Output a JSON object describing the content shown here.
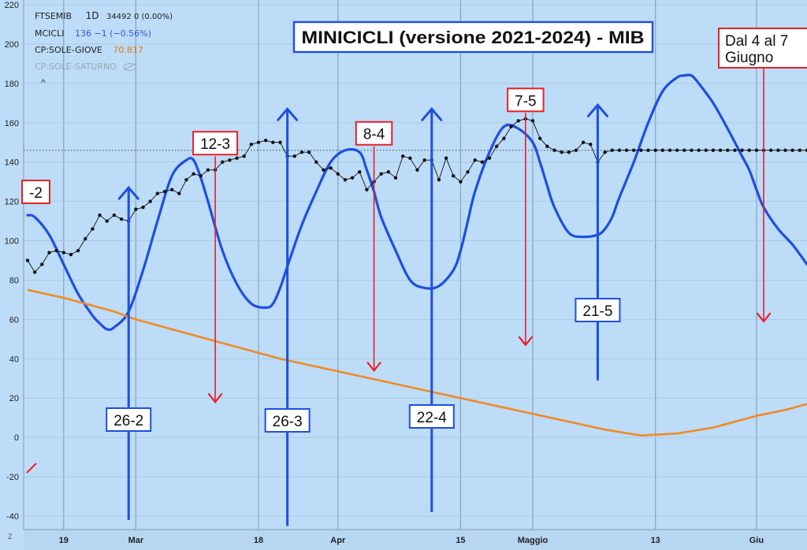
{
  "legend": {
    "symbol": "FTSEMIB",
    "interval": "1D",
    "quote": "34492 0 (0.00%)",
    "mcicli_name": "MCICLI",
    "mcicli_value": "136 −1 (−0.56%)",
    "sole_giove_name": "CP:SOLE-GIOVE",
    "sole_giove_value": "70.817",
    "sole_saturno_name": "CP:SOLE-SATURNO",
    "caret": "^",
    "zoom_button": "Z"
  },
  "colors": {
    "background": "#bcdcf7",
    "cycle": "#1f4ee0",
    "price": "#111111",
    "sole_giove": "#f08a24",
    "red_arrow": "#e8202a",
    "blue_arrow": "#1f4ee0",
    "grid": "#8aa7c2",
    "legend_blue": "#2f5bd6",
    "legend_orange": "#e07c10"
  },
  "chart_data": {
    "type": "line",
    "title": "MINICICLI (versione 2021-2024) - MIB",
    "xlabel": "",
    "ylabel": "",
    "ylim": [
      -45,
      220
    ],
    "yticks": [
      -40,
      -20,
      0,
      20,
      40,
      60,
      80,
      100,
      120,
      140,
      160,
      180,
      200,
      220
    ],
    "x_tick_labels": [
      "19",
      "Mar",
      "18",
      "Apr",
      "15",
      "Maggio",
      "13",
      "Giu"
    ],
    "x_tick_days": [
      0,
      10,
      27,
      38,
      55,
      65,
      82,
      96
    ],
    "x_range_days": [
      -5,
      103
    ],
    "reference_level": 146,
    "series": [
      {
        "name": "MCICLI",
        "style": "smooth",
        "x": [
          -5,
          -4,
          -2,
          0,
          2,
          4,
          5,
          6,
          7,
          9,
          11,
          13,
          15,
          17,
          18,
          19,
          20,
          22,
          24,
          26,
          28,
          29,
          30,
          31,
          33,
          35,
          37,
          39,
          41,
          42,
          43,
          44,
          46,
          48,
          50,
          52,
          54,
          55,
          56,
          57,
          59,
          61,
          63,
          65,
          66,
          67,
          68,
          70,
          72,
          74,
          75,
          76,
          77,
          79,
          81,
          83,
          85,
          86,
          87,
          88,
          90,
          92,
          94,
          95,
          96,
          97,
          99,
          101,
          103
        ],
        "values": [
          113,
          112,
          103,
          88,
          73,
          62,
          58,
          55,
          56,
          64,
          85,
          110,
          133,
          141,
          141,
          132,
          120,
          95,
          78,
          68,
          66,
          68,
          76,
          87,
          108,
          125,
          140,
          146,
          145,
          136,
          125,
          112,
          95,
          80,
          76,
          77,
          85,
          95,
          110,
          125,
          145,
          158,
          157,
          150,
          140,
          128,
          117,
          104,
          102,
          103,
          106,
          112,
          122,
          140,
          160,
          176,
          183,
          184,
          184,
          180,
          170,
          157,
          143,
          136,
          126,
          117,
          106,
          98,
          88
        ]
      },
      {
        "name": "FTSEMIB",
        "style": "dotted-line",
        "x": [
          -5,
          -4,
          -3,
          -2,
          -1,
          0,
          1,
          2,
          3,
          4,
          5,
          6,
          7,
          8,
          9,
          10,
          11,
          12,
          13,
          14,
          15,
          16,
          17,
          18,
          19,
          20,
          21,
          22,
          23,
          24,
          25,
          26,
          27,
          28,
          29,
          30,
          31,
          32,
          33,
          34,
          35,
          36,
          37,
          38,
          39,
          40,
          41,
          42,
          43,
          44,
          45,
          46,
          47,
          48,
          49,
          50,
          51,
          52,
          53,
          54,
          55,
          56,
          57,
          58,
          59,
          60,
          61,
          62,
          63,
          64,
          65,
          66,
          67,
          68,
          69,
          70,
          71,
          72,
          73,
          74,
          75,
          76,
          77,
          78,
          79,
          80,
          81,
          82,
          83,
          84,
          85,
          86,
          87,
          88,
          89,
          90,
          91,
          92,
          93,
          94,
          95,
          96,
          97,
          98,
          99,
          100,
          101,
          102,
          103
        ],
        "values": [
          90,
          84,
          88,
          94,
          95,
          94,
          93,
          95,
          101,
          106,
          113,
          110,
          113,
          111,
          110,
          116,
          117,
          120,
          124,
          125,
          126,
          124,
          131,
          134,
          133,
          136,
          136,
          140,
          141,
          142,
          143,
          149,
          150,
          151,
          150,
          150,
          143,
          143,
          145,
          145,
          140,
          136,
          137,
          134,
          131,
          132,
          135,
          126,
          130,
          134,
          135,
          132,
          143,
          142,
          136,
          141,
          141,
          131,
          142,
          133,
          130,
          135,
          141,
          140,
          142,
          148,
          152,
          158,
          161,
          162,
          161,
          152,
          148,
          146,
          145,
          145,
          146,
          150,
          149,
          140,
          145,
          146,
          146,
          146,
          146,
          146,
          146,
          146,
          146,
          146,
          146,
          146,
          146,
          146,
          146,
          146,
          146,
          146,
          146,
          146,
          146,
          146,
          146,
          146,
          146,
          146,
          146,
          146,
          146
        ]
      },
      {
        "name": "CP:SOLE-GIOVE",
        "style": "line",
        "x": [
          -5,
          0,
          3,
          7,
          10,
          13,
          17,
          20,
          25,
          30,
          35,
          40,
          45,
          50,
          55,
          60,
          65,
          70,
          75,
          80,
          85,
          90,
          93,
          96,
          100,
          103
        ],
        "values": [
          75,
          71,
          68,
          64,
          60,
          57,
          53,
          50,
          45,
          40,
          36,
          32,
          28,
          24,
          20,
          16,
          12,
          8,
          4,
          1,
          2,
          5,
          8,
          11,
          14,
          17
        ]
      }
    ],
    "annotations": [
      {
        "label": "-2",
        "kind": "red-box",
        "x": -5,
        "y": 125
      },
      {
        "label": "12-3",
        "kind": "red-box",
        "arrow": "down",
        "x": 21,
        "y_from": 143,
        "y_to": 18
      },
      {
        "label": "8-4",
        "kind": "red-box",
        "arrow": "down",
        "x": 43,
        "y_from": 148,
        "y_to": 34
      },
      {
        "label": "7-5",
        "kind": "red-box",
        "arrow": "down",
        "x": 64,
        "y_from": 165,
        "y_to": 47
      },
      {
        "label": "Dal 4 al 7\nGiugno",
        "kind": "red-box",
        "arrow": "down",
        "x": 97,
        "y_from": 188,
        "y_to": 59
      },
      {
        "label": "26-2",
        "kind": "blue-box",
        "arrow": "up",
        "x": 9,
        "y_from": -42,
        "y_to": 127
      },
      {
        "label": "26-3",
        "kind": "blue-box",
        "arrow": "up",
        "x": 31,
        "y_from": -45,
        "y_to": 167
      },
      {
        "label": "22-4",
        "kind": "blue-box",
        "arrow": "up",
        "x": 51,
        "y_from": -38,
        "y_to": 167
      },
      {
        "label": "21-5",
        "kind": "blue-box",
        "arrow": "up",
        "x": 74,
        "y_from": 29,
        "y_to": 169
      }
    ]
  }
}
